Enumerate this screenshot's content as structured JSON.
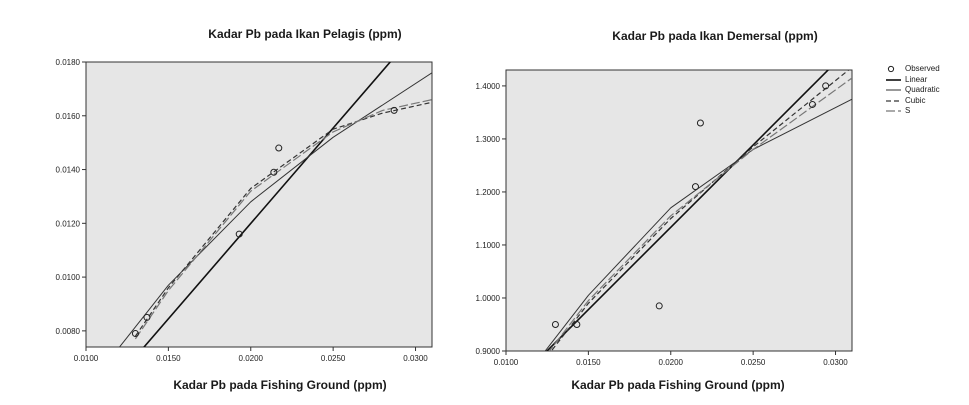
{
  "legend": [
    {
      "name": "Observed",
      "key": "circle"
    },
    {
      "name": "Linear",
      "key": "solid-thick"
    },
    {
      "name": "Quadratic",
      "key": "solid-thin"
    },
    {
      "name": "Cubic",
      "key": "dash"
    },
    {
      "name": "S",
      "key": "long-dash"
    }
  ],
  "chart_data": [
    {
      "type": "scatter",
      "title": "Kadar Pb pada Ikan Pelagis (ppm)",
      "xlabel": "Kadar Pb pada Fishing Ground (ppm)",
      "ylabel": "",
      "xlim": [
        0.01,
        0.031
      ],
      "ylim": [
        0.0074,
        0.018
      ],
      "x_ticks": [
        0.01,
        0.015,
        0.02,
        0.025,
        0.03
      ],
      "x_tick_labels": [
        "0.0100",
        "0.0150",
        "0.0200",
        "0.0250",
        "0.0300"
      ],
      "y_ticks": [
        0.008,
        0.01,
        0.012,
        0.014,
        0.016,
        0.018
      ],
      "y_tick_labels": [
        "0.0080",
        "0.0100",
        "0.0120",
        "0.0140",
        "0.0160",
        "0.0180"
      ],
      "observed": {
        "name": "Observed",
        "x": [
          0.013,
          0.0137,
          0.0193,
          0.0214,
          0.0217,
          0.0287
        ],
        "y": [
          0.0079,
          0.0085,
          0.0116,
          0.0139,
          0.0148,
          0.0162
        ]
      },
      "fits": [
        {
          "name": "Linear",
          "x": [
            0.01,
            0.031
          ],
          "y": [
            0.0049,
            0.0198
          ]
        },
        {
          "name": "Quadratic",
          "x": [
            0.011,
            0.015,
            0.02,
            0.025,
            0.031
          ],
          "y": [
            0.0066,
            0.0097,
            0.0128,
            0.0152,
            0.0176
          ]
        },
        {
          "name": "Cubic",
          "x": [
            0.013,
            0.015,
            0.02,
            0.025,
            0.028,
            0.031
          ],
          "y": [
            0.0078,
            0.0096,
            0.0133,
            0.0155,
            0.0161,
            0.0165
          ]
        },
        {
          "name": "S",
          "x": [
            0.013,
            0.015,
            0.02,
            0.025,
            0.028,
            0.031
          ],
          "y": [
            0.0077,
            0.0095,
            0.0132,
            0.0154,
            0.0162,
            0.0166
          ]
        }
      ]
    },
    {
      "type": "scatter",
      "title": "Kadar Pb pada Ikan Demersal (ppm)",
      "xlabel": "Kadar Pb pada Fishing Ground (ppm)",
      "ylabel": "",
      "xlim": [
        0.01,
        0.031
      ],
      "ylim": [
        0.9,
        1.43
      ],
      "x_ticks": [
        0.01,
        0.015,
        0.02,
        0.025,
        0.03
      ],
      "x_tick_labels": [
        "0.0100",
        "0.0150",
        "0.0200",
        "0.0250",
        "0.0300"
      ],
      "y_ticks": [
        0.9,
        1.0,
        1.1,
        1.2,
        1.3,
        1.4
      ],
      "y_tick_labels": [
        "0.9000",
        "1.0000",
        "1.1000",
        "1.2000",
        "1.3000",
        "1.4000"
      ],
      "observed": {
        "name": "Observed",
        "x": [
          0.013,
          0.0143,
          0.0193,
          0.0215,
          0.0218,
          0.0286,
          0.0294
        ],
        "y": [
          0.95,
          0.95,
          0.985,
          1.21,
          1.33,
          1.365,
          1.4
        ]
      },
      "fits": [
        {
          "name": "Linear",
          "x": [
            0.012,
            0.031
          ],
          "y": [
            0.885,
            1.475
          ]
        },
        {
          "name": "Quadratic",
          "x": [
            0.012,
            0.015,
            0.02,
            0.025,
            0.031
          ],
          "y": [
            0.885,
            1.005,
            1.17,
            1.28,
            1.375
          ]
        },
        {
          "name": "Cubic",
          "x": [
            0.0125,
            0.015,
            0.02,
            0.025,
            0.031
          ],
          "y": [
            0.89,
            0.99,
            1.15,
            1.285,
            1.435
          ]
        },
        {
          "name": "S",
          "x": [
            0.0125,
            0.015,
            0.02,
            0.025,
            0.031
          ],
          "y": [
            0.895,
            0.995,
            1.155,
            1.28,
            1.415
          ]
        }
      ]
    }
  ]
}
